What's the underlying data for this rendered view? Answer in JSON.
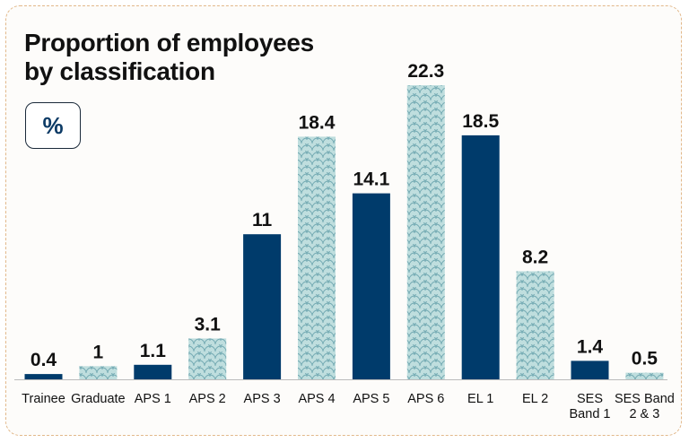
{
  "title_line1": "Proportion of employees",
  "title_line2": "by classification",
  "unit_badge": "%",
  "colors": {
    "solid": "#003b6b",
    "pattern_fill": "#bfdede",
    "pattern_line": "#6fa7b0",
    "axis": "#bbbbbb",
    "frame": "#e2b88a"
  },
  "chart_data": {
    "type": "bar",
    "title": "Proportion of employees by classification",
    "ylabel": "%",
    "categories": [
      [
        "Trainee"
      ],
      [
        "Graduate"
      ],
      [
        "APS 1"
      ],
      [
        "APS 2"
      ],
      [
        "APS 3"
      ],
      [
        "APS 4"
      ],
      [
        "APS 5"
      ],
      [
        "APS 6"
      ],
      [
        "EL 1"
      ],
      [
        "EL 2"
      ],
      [
        "SES",
        "Band 1"
      ],
      [
        "SES Band",
        "2 & 3"
      ]
    ],
    "values": [
      0.4,
      1,
      1.1,
      3.1,
      11,
      18.4,
      14.1,
      22.3,
      18.5,
      8.2,
      1.4,
      0.5
    ],
    "value_labels": [
      "0.4",
      "1",
      "1.1",
      "3.1",
      "11",
      "18.4",
      "14.1",
      "22.3",
      "18.5",
      "8.2",
      "1.4",
      "0.5"
    ],
    "styles": [
      "solid",
      "pattern",
      "solid",
      "pattern",
      "solid",
      "pattern",
      "solid",
      "pattern",
      "solid",
      "pattern",
      "solid",
      "pattern"
    ],
    "ylim": [
      0,
      22.3
    ],
    "grid": false,
    "legend": "none"
  }
}
